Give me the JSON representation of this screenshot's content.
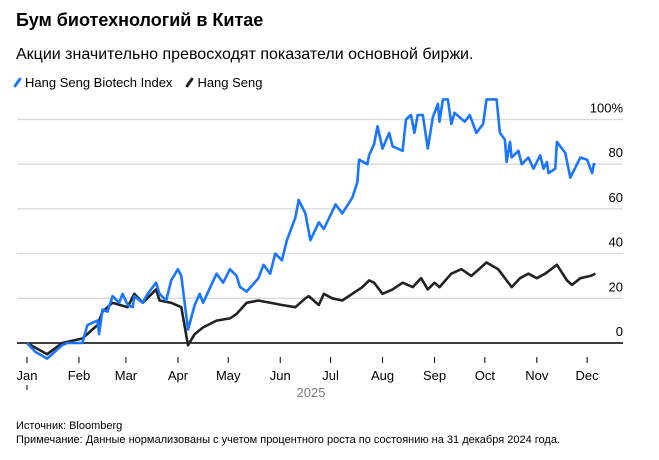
{
  "title": "Бум биотехнологий в Китае",
  "subtitle": "Акции значительно превосходят показатели основной биржи.",
  "source": "Источник: Bloomberg",
  "note": "Примечание: Данные нормализованы с учетом процентного роста по состоянию на 31 декабря 2024 года.",
  "chart_data": {
    "type": "line",
    "xlabel": "2025",
    "ylabel": "",
    "ylim": [
      0,
      100
    ],
    "y_ticks": [
      "0",
      "20",
      "40",
      "60",
      "80",
      "100%"
    ],
    "y_tick_values": [
      0,
      20,
      40,
      60,
      80,
      100
    ],
    "x_ticks": [
      "Jan",
      "Feb",
      "Mar",
      "Apr",
      "May",
      "Jun",
      "Jul",
      "Aug",
      "Sep",
      "Oct",
      "Nov",
      "Dec"
    ],
    "grid": true,
    "legend_position": "top-left",
    "series": [
      {
        "name": "Hang Seng Biotech Index",
        "color": "#1a75ff",
        "points": [
          [
            "2025-01-01",
            0
          ],
          [
            "2025-01-06",
            -4
          ],
          [
            "2025-01-13",
            -7
          ],
          [
            "2025-01-22",
            -1
          ],
          [
            "2025-01-25",
            0
          ],
          [
            "2025-02-03",
            0
          ],
          [
            "2025-02-06",
            8
          ],
          [
            "2025-02-12",
            10
          ],
          [
            "2025-02-13",
            4
          ],
          [
            "2025-02-15",
            15
          ],
          [
            "2025-02-18",
            14
          ],
          [
            "2025-02-21",
            21
          ],
          [
            "2025-02-25",
            18
          ],
          [
            "2025-02-27",
            22
          ],
          [
            "2025-03-02",
            17
          ],
          [
            "2025-03-05",
            16
          ],
          [
            "2025-03-06",
            21
          ],
          [
            "2025-03-11",
            18
          ],
          [
            "2025-03-14",
            22
          ],
          [
            "2025-03-19",
            27
          ],
          [
            "2025-03-21",
            22
          ],
          [
            "2025-03-25",
            19
          ],
          [
            "2025-03-28",
            28
          ],
          [
            "2025-04-01",
            33
          ],
          [
            "2025-04-03",
            30
          ],
          [
            "2025-04-07",
            6
          ],
          [
            "2025-04-11",
            17
          ],
          [
            "2025-04-14",
            22
          ],
          [
            "2025-04-16",
            18
          ],
          [
            "2025-04-24",
            31
          ],
          [
            "2025-04-28",
            27
          ],
          [
            "2025-05-02",
            33
          ],
          [
            "2025-05-06",
            30
          ],
          [
            "2025-05-08",
            25
          ],
          [
            "2025-05-12",
            23
          ],
          [
            "2025-05-19",
            29
          ],
          [
            "2025-05-22",
            35
          ],
          [
            "2025-05-26",
            31
          ],
          [
            "2025-05-29",
            40
          ],
          [
            "2025-06-02",
            37
          ],
          [
            "2025-06-05",
            46
          ],
          [
            "2025-06-10",
            56
          ],
          [
            "2025-06-12",
            64
          ],
          [
            "2025-06-16",
            58
          ],
          [
            "2025-06-18",
            50
          ],
          [
            "2025-06-19",
            46
          ],
          [
            "2025-06-24",
            54
          ],
          [
            "2025-06-27",
            51
          ],
          [
            "2025-07-04",
            62
          ],
          [
            "2025-07-08",
            58
          ],
          [
            "2025-07-14",
            65
          ],
          [
            "2025-07-17",
            72
          ],
          [
            "2025-07-18",
            82
          ],
          [
            "2025-07-23",
            80
          ],
          [
            "2025-07-24",
            84
          ],
          [
            "2025-07-27",
            89
          ],
          [
            "2025-07-29",
            97
          ],
          [
            "2025-08-01",
            87
          ],
          [
            "2025-08-05",
            94
          ],
          [
            "2025-08-07",
            88
          ],
          [
            "2025-08-13",
            86
          ],
          [
            "2025-08-15",
            100
          ],
          [
            "2025-08-18",
            102
          ],
          [
            "2025-08-20",
            94
          ],
          [
            "2025-08-22",
            102
          ],
          [
            "2025-08-25",
            102
          ],
          [
            "2025-08-28",
            87
          ],
          [
            "2025-08-31",
            101
          ],
          [
            "2025-09-03",
            107
          ],
          [
            "2025-09-04",
            99
          ],
          [
            "2025-09-06",
            109
          ],
          [
            "2025-09-09",
            109
          ],
          [
            "2025-09-11",
            98
          ],
          [
            "2025-09-13",
            103
          ],
          [
            "2025-09-19",
            99
          ],
          [
            "2025-09-22",
            102
          ],
          [
            "2025-09-26",
            94
          ],
          [
            "2025-09-30",
            98
          ],
          [
            "2025-10-02",
            109
          ],
          [
            "2025-10-08",
            109
          ],
          [
            "2025-10-10",
            94
          ],
          [
            "2025-10-13",
            91
          ],
          [
            "2025-10-14",
            81
          ],
          [
            "2025-10-16",
            90
          ],
          [
            "2025-10-17",
            83
          ],
          [
            "2025-10-21",
            86
          ],
          [
            "2025-10-23",
            80
          ],
          [
            "2025-10-27",
            83
          ],
          [
            "2025-10-30",
            78
          ],
          [
            "2025-11-03",
            84
          ],
          [
            "2025-11-05",
            78
          ],
          [
            "2025-11-07",
            81
          ],
          [
            "2025-11-08",
            76
          ],
          [
            "2025-11-12",
            78
          ],
          [
            "2025-11-13",
            90
          ],
          [
            "2025-11-18",
            85
          ],
          [
            "2025-11-21",
            74
          ],
          [
            "2025-11-27",
            83
          ],
          [
            "2025-12-01",
            82
          ],
          [
            "2025-12-04",
            76
          ],
          [
            "2025-12-05",
            80
          ],
          [
            "2025-12-06",
            80
          ]
        ]
      },
      {
        "name": "Hang Seng",
        "color": "#222222",
        "points": [
          [
            "2025-01-01",
            0
          ],
          [
            "2025-01-13",
            -5
          ],
          [
            "2025-01-22",
            0
          ],
          [
            "2025-02-03",
            2
          ],
          [
            "2025-02-12",
            8
          ],
          [
            "2025-02-15",
            14
          ],
          [
            "2025-02-21",
            18
          ],
          [
            "2025-03-02",
            16
          ],
          [
            "2025-03-06",
            22
          ],
          [
            "2025-03-11",
            18
          ],
          [
            "2025-03-19",
            24
          ],
          [
            "2025-03-21",
            19
          ],
          [
            "2025-03-28",
            18
          ],
          [
            "2025-04-03",
            16
          ],
          [
            "2025-04-07",
            -1
          ],
          [
            "2025-04-11",
            4
          ],
          [
            "2025-04-16",
            7
          ],
          [
            "2025-04-24",
            10
          ],
          [
            "2025-05-02",
            11
          ],
          [
            "2025-05-06",
            13
          ],
          [
            "2025-05-12",
            18
          ],
          [
            "2025-05-19",
            19
          ],
          [
            "2025-06-02",
            17
          ],
          [
            "2025-06-10",
            16
          ],
          [
            "2025-06-16",
            20
          ],
          [
            "2025-06-18",
            21
          ],
          [
            "2025-06-24",
            17
          ],
          [
            "2025-06-27",
            22
          ],
          [
            "2025-07-02",
            20
          ],
          [
            "2025-07-08",
            19
          ],
          [
            "2025-07-16",
            23
          ],
          [
            "2025-07-20",
            25
          ],
          [
            "2025-07-24",
            28
          ],
          [
            "2025-07-27",
            27
          ],
          [
            "2025-08-01",
            22
          ],
          [
            "2025-08-07",
            24
          ],
          [
            "2025-08-13",
            27
          ],
          [
            "2025-08-19",
            25
          ],
          [
            "2025-08-24",
            29
          ],
          [
            "2025-08-28",
            24
          ],
          [
            "2025-09-01",
            27
          ],
          [
            "2025-09-04",
            25
          ],
          [
            "2025-09-11",
            31
          ],
          [
            "2025-09-17",
            33
          ],
          [
            "2025-09-23",
            30
          ],
          [
            "2025-10-02",
            36
          ],
          [
            "2025-10-09",
            33
          ],
          [
            "2025-10-14",
            28
          ],
          [
            "2025-10-17",
            25
          ],
          [
            "2025-10-22",
            29
          ],
          [
            "2025-10-27",
            31
          ],
          [
            "2025-11-01",
            29
          ],
          [
            "2025-11-06",
            31
          ],
          [
            "2025-11-13",
            35
          ],
          [
            "2025-11-19",
            28
          ],
          [
            "2025-11-22",
            26
          ],
          [
            "2025-11-27",
            29
          ],
          [
            "2025-12-03",
            30
          ],
          [
            "2025-12-06",
            31
          ]
        ]
      }
    ]
  }
}
